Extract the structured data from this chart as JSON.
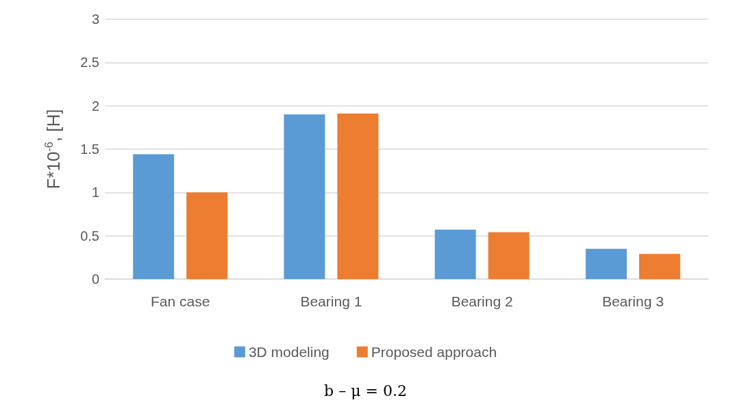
{
  "chart_data": {
    "type": "bar",
    "ylabel": "F*10$^{-6}$, [H]",
    "categories": [
      "Fan case",
      "Bearing 1",
      "Bearing 2",
      "Bearing 3"
    ],
    "series": [
      {
        "name": "3D modeling",
        "color": "#5b9bd5",
        "values": [
          1.44,
          1.9,
          0.57,
          0.35
        ]
      },
      {
        "name": "Proposed approach",
        "color": "#ed7d31",
        "values": [
          1.0,
          1.91,
          0.54,
          0.29
        ]
      }
    ],
    "ylim": [
      0,
      3
    ],
    "yticks": [
      0,
      0.5,
      1,
      1.5,
      2,
      2.5,
      3
    ],
    "grid": "y",
    "legend": "bottom",
    "annotations": [
      "b – μ = 0.2"
    ]
  }
}
